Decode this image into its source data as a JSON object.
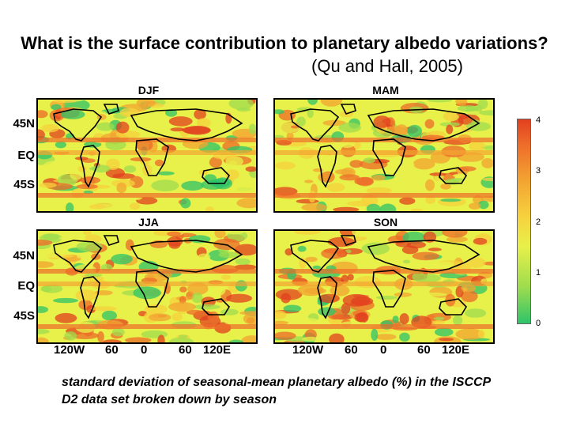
{
  "title": {
    "bold": "What is the surface contribution to planetary albedo variations?",
    "normal": "(Qu and Hall, 2005)"
  },
  "panels": [
    {
      "label": "DJF"
    },
    {
      "label": "MAM"
    },
    {
      "label": "JJA"
    },
    {
      "label": "SON"
    }
  ],
  "lat_labels": [
    "45N",
    "EQ",
    "45S"
  ],
  "lon_labels": [
    "120W",
    "60",
    "0",
    "60",
    "120E"
  ],
  "colorbar": {
    "ticks": [
      "4",
      "3",
      "2",
      "1",
      "0"
    ],
    "min": 0,
    "max": 4,
    "colors": [
      "#2fc46a",
      "#9fdc4e",
      "#e8f04a",
      "#f6d23e",
      "#f3a432",
      "#ee6b2a",
      "#e2401f"
    ]
  },
  "caption": "standard deviation of seasonal-mean planetary albedo (%) in the ISCCP D2 data set broken down by season"
}
